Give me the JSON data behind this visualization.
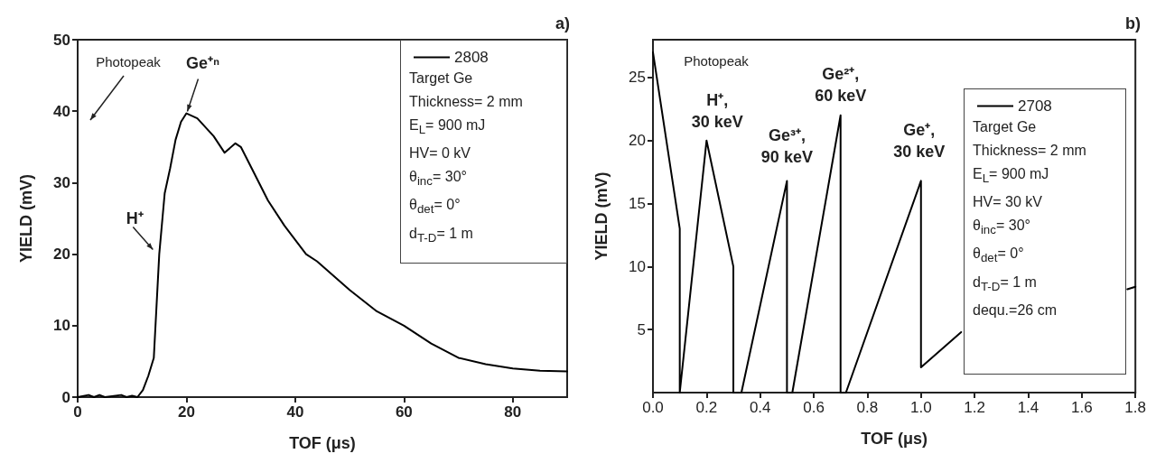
{
  "chart_data": [
    {
      "type": "line",
      "title": "a)",
      "xlabel": "TOF (μs)",
      "ylabel": "YIELD (mV)",
      "xlim": [
        0,
        90
      ],
      "ylim": [
        0,
        50
      ],
      "xticks": [
        0,
        20,
        40,
        60,
        80
      ],
      "yticks": [
        0,
        10,
        20,
        30,
        40,
        50
      ],
      "grid": false,
      "legend": "top right",
      "marker": "none",
      "line_style": "solid",
      "series": [
        {
          "name": "2808",
          "color": "#000000",
          "x": [
            0,
            2,
            3,
            4,
            5,
            8,
            9,
            10,
            11,
            12,
            13,
            14,
            15,
            16,
            17,
            18,
            19,
            20,
            22,
            25,
            27,
            29,
            30,
            32,
            35,
            38,
            42,
            44,
            50,
            55,
            60,
            65,
            70,
            75,
            80,
            85,
            90
          ],
          "values": [
            0,
            0.3,
            0,
            0.3,
            0,
            0.3,
            0,
            0.2,
            0,
            1,
            3,
            5.5,
            20,
            28.5,
            32,
            36,
            38.5,
            39.7,
            39,
            36.5,
            34.2,
            35.5,
            35,
            32,
            27.5,
            24,
            20,
            19,
            15,
            12,
            10,
            7.5,
            5.5,
            4.6,
            4,
            3.7,
            3.6
          ]
        }
      ],
      "annotations": [
        "Photopeak",
        {
          "text": "Ge⁺ⁿ",
          "x": 20,
          "y": 39.7
        },
        {
          "text": "H⁺",
          "x": 15,
          "y": 20
        },
        "Target Ge",
        "Thickness= 2 mm",
        "E$_{L}$= 900 mJ",
        "HV= 0 kV",
        "θ$_{inc}$= 30°",
        "θ$_{det}$= 0°",
        "d$_{T-D}$= 1 m"
      ]
    },
    {
      "type": "line",
      "title": "b)",
      "xlabel": "TOF (μs)",
      "ylabel": "YIELD (mV)",
      "xlim": [
        0,
        1.8
      ],
      "ylim": [
        0,
        28
      ],
      "xticks": [
        {
          "value": 0,
          "label": "0.0"
        },
        0.2,
        0.4,
        0.6,
        0.8,
        {
          "value": 1,
          "label": "1.0"
        },
        1.2,
        1.4,
        1.6,
        1.8
      ],
      "yticks": [
        5,
        10,
        15,
        20,
        25
      ],
      "grid": false,
      "legend": "top right",
      "marker": "none",
      "line_style": "solid",
      "series": [
        {
          "name": "2708",
          "color": "#000000",
          "x": [
            0,
            0.1,
            0.1,
            0.2,
            0.3,
            0.3,
            0.33,
            0.5,
            0.5,
            0.52,
            0.7,
            0.7,
            0.72,
            1.0,
            1.0,
            1.15,
            1.45,
            1.77,
            1.8
          ],
          "values": [
            27,
            13,
            0,
            20,
            10,
            0,
            0,
            16.8,
            0,
            0,
            22,
            0,
            0,
            16.8,
            2,
            4.8,
            null,
            8.2,
            8.4
          ]
        }
      ],
      "annotations": [
        {
          "text": "Photopeak",
          "x": 0,
          "y": 27
        },
        {
          "text": "H⁺,\n30 keV",
          "x": 0.2,
          "y": 20
        },
        {
          "text": "Ge³⁺,\n90 keV",
          "x": 0.5,
          "y": 16.8
        },
        {
          "text": "Ge²⁺,\n60 keV",
          "x": 0.7,
          "y": 22
        },
        {
          "text": "Ge⁺,\n30 keV",
          "x": 1.0,
          "y": 16.8
        },
        "Target Ge",
        "Thickness= 2 mm",
        "E$_{L}$= 900 mJ",
        "HV= 30 kV",
        "θ$_{inc}$= 30°",
        "θ$_{det}$= 0°",
        "d$_{T-D}$= 1 m",
        "dequ.=26 cm"
      ]
    }
  ]
}
